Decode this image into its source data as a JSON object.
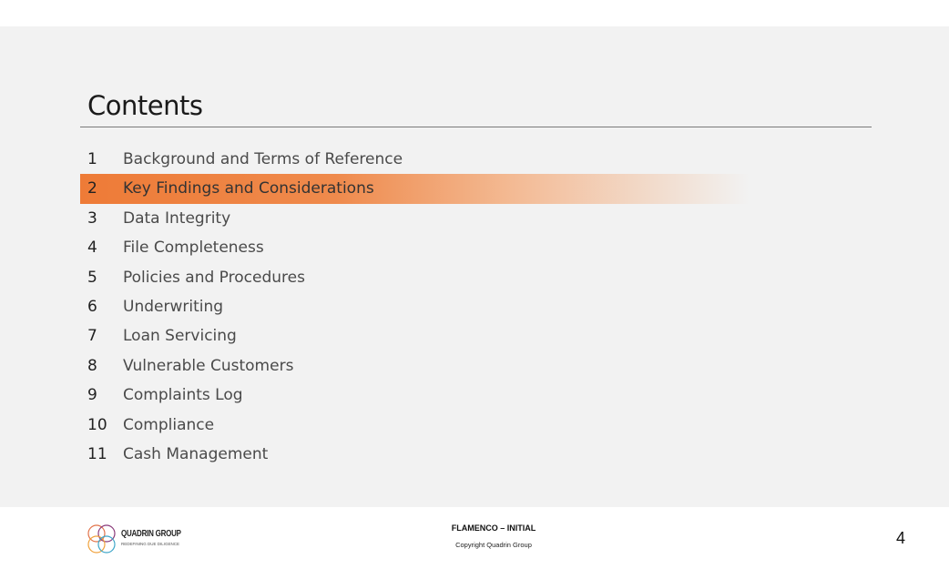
{
  "slide": {
    "title": "Contents",
    "active_index": 1,
    "toc": [
      {
        "num": "1",
        "label": "Background and Terms of Reference"
      },
      {
        "num": "2",
        "label": "Key Findings and Considerations"
      },
      {
        "num": "3",
        "label": "Data Integrity"
      },
      {
        "num": "4",
        "label": "File Completeness"
      },
      {
        "num": "5",
        "label": "Policies and Procedures"
      },
      {
        "num": "6",
        "label": "Underwriting"
      },
      {
        "num": "7",
        "label": "Loan Servicing"
      },
      {
        "num": "8",
        "label": "Vulnerable Customers"
      },
      {
        "num": "9",
        "label": "Complaints Log"
      },
      {
        "num": "10",
        "label": "Compliance"
      },
      {
        "num": "11",
        "label": "Cash Management"
      }
    ]
  },
  "footer": {
    "logo_name": "QUADRIN GROUP",
    "logo_tagline": "REDEFINING DUE DILIGENCE",
    "project": "FLAMENCO – INITIAL",
    "copyright": "Copyright Quadrin Group",
    "page_number": "4"
  },
  "colors": {
    "highlight": "#ee7b37",
    "slide_background": "#f2f2f2"
  }
}
